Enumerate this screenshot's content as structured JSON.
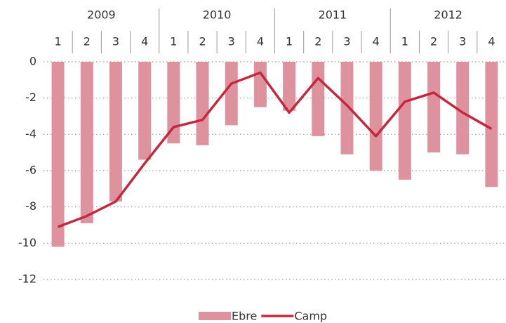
{
  "chart_data": {
    "type": "bar-line",
    "years": [
      "2009",
      "2010",
      "2011",
      "2012"
    ],
    "categories": [
      "1",
      "2",
      "3",
      "4",
      "1",
      "2",
      "3",
      "4",
      "1",
      "2",
      "3",
      "4",
      "1",
      "2",
      "3",
      "4"
    ],
    "series": [
      {
        "name": "Ebre",
        "type": "bar",
        "color": "#de929d",
        "values": [
          -10.2,
          -8.9,
          -7.7,
          -5.4,
          -4.5,
          -4.6,
          -3.5,
          -2.5,
          -2.7,
          -4.1,
          -5.1,
          -6.0,
          -6.5,
          -5.0,
          -5.1,
          -6.9
        ]
      },
      {
        "name": "Camp",
        "type": "line",
        "color": "#c4283f",
        "values": [
          -9.1,
          -8.5,
          -7.7,
          -5.6,
          -3.6,
          -3.2,
          -1.2,
          -0.6,
          -2.8,
          -0.9,
          -2.4,
          -4.1,
          -2.2,
          -1.7,
          -2.8,
          -3.7
        ]
      }
    ],
    "ylim": [
      -12,
      0
    ],
    "yticks": [
      0,
      -2,
      -4,
      -6,
      -8,
      -10,
      -12
    ],
    "grid": true,
    "legend": "bottom"
  }
}
